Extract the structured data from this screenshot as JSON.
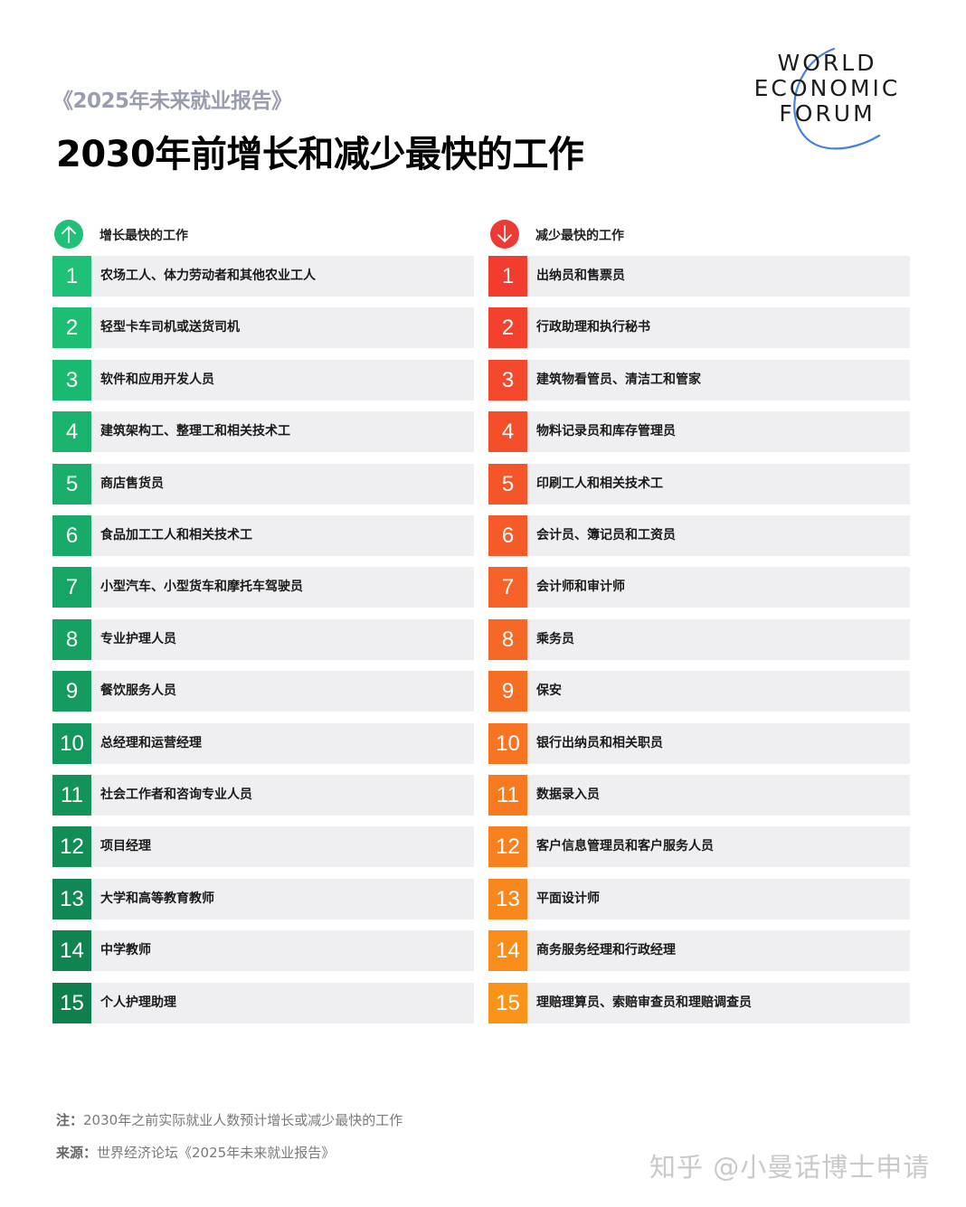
{
  "header": {
    "subtitle": "《2025年未来就业报告》",
    "title": "2030年前增长和减少最快的工作"
  },
  "logo": {
    "lines": [
      "WORLD",
      "ECONOMIC",
      "FORUM"
    ],
    "arc_color": "#4a7fdc"
  },
  "growing": {
    "icon": "arrow-up-icon",
    "color": "#1ec177",
    "label": "增长最快的工作",
    "items": [
      {
        "rank": "1",
        "title": "农场工人、体力劳动者和其他农业工人",
        "color": "#1ec177"
      },
      {
        "rank": "2",
        "title": "轻型卡车司机或送货司机",
        "color": "#1dbd74"
      },
      {
        "rank": "3",
        "title": "软件和应用开发人员",
        "color": "#1bb871"
      },
      {
        "rank": "4",
        "title": "建筑架构工、整理工和相关技术工",
        "color": "#1ab36e"
      },
      {
        "rank": "5",
        "title": "商店售货员",
        "color": "#19ae6b"
      },
      {
        "rank": "6",
        "title": "食品加工工人和相关技术工",
        "color": "#18aa68"
      },
      {
        "rank": "7",
        "title": "小型汽车、小型货车和摩托车驾驶员",
        "color": "#17a565"
      },
      {
        "rank": "8",
        "title": "专业护理人员",
        "color": "#16a062"
      },
      {
        "rank": "9",
        "title": "餐饮服务人员",
        "color": "#159b5f"
      },
      {
        "rank": "10",
        "title": "总经理和运营经理",
        "color": "#14975c"
      },
      {
        "rank": "11",
        "title": "社会工作者和咨询专业人员",
        "color": "#139259"
      },
      {
        "rank": "12",
        "title": "项目经理",
        "color": "#128d56"
      },
      {
        "rank": "13",
        "title": "大学和高等教育教师",
        "color": "#118853"
      },
      {
        "rank": "14",
        "title": "中学教师",
        "color": "#108450"
      },
      {
        "rank": "15",
        "title": "个人护理助理",
        "color": "#0f7f4d"
      }
    ]
  },
  "declining": {
    "icon": "arrow-down-icon",
    "color": "#ee3a35",
    "label": "减少最快的工作",
    "items": [
      {
        "rank": "1",
        "title": "出纳员和售票员",
        "color": "#f23c2e"
      },
      {
        "rank": "2",
        "title": "行政助理和执行秘书",
        "color": "#f2422d"
      },
      {
        "rank": "3",
        "title": "建筑物看管员、清洁工和管家",
        "color": "#f3482c"
      },
      {
        "rank": "4",
        "title": "物料记录员和库存管理员",
        "color": "#f34f2a"
      },
      {
        "rank": "5",
        "title": "印刷工人和相关技术工",
        "color": "#f45529"
      },
      {
        "rank": "6",
        "title": "会计员、簿记员和工资员",
        "color": "#f45b28"
      },
      {
        "rank": "7",
        "title": "会计师和审计师",
        "color": "#f56126"
      },
      {
        "rank": "8",
        "title": "乘务员",
        "color": "#f56825"
      },
      {
        "rank": "9",
        "title": "保安",
        "color": "#f66e23"
      },
      {
        "rank": "10",
        "title": "银行出纳员和相关职员",
        "color": "#f67422"
      },
      {
        "rank": "11",
        "title": "数据录入员",
        "color": "#f77a20"
      },
      {
        "rank": "12",
        "title": "客户信息管理员和客户服务人员",
        "color": "#f7811f"
      },
      {
        "rank": "13",
        "title": "平面设计师",
        "color": "#f8871d"
      },
      {
        "rank": "14",
        "title": "商务服务经理和行政经理",
        "color": "#f88d1c"
      },
      {
        "rank": "15",
        "title": "理赔理算员、索赔审查员和理赔调查员",
        "color": "#f9931a"
      }
    ]
  },
  "footer": {
    "note_label": "注：",
    "note_text": "2030年之前实际就业人数预计增长或减少最快的工作",
    "source_label": "来源：",
    "source_text": "世界经济论坛《2025年未来就业报告》",
    "watermark": "知乎 @小曼话博士申请"
  }
}
